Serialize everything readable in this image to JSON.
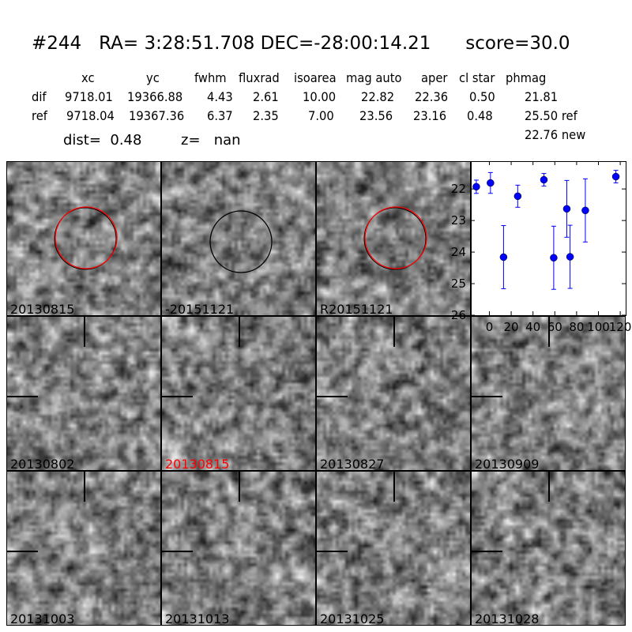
{
  "title": "#244   RA= 3:28:51.708 DEC=-28:00:14.21      score=30.0",
  "table": {
    "headers": [
      "xc",
      "yc",
      "fwhm",
      "fluxrad",
      "isoarea",
      "mag auto",
      "aper",
      "cl star",
      "phmag"
    ],
    "rows": [
      {
        "label": "dif",
        "values": [
          "9718.01",
          "19366.88",
          "4.43",
          "2.61",
          "10.00",
          "22.82",
          "22.36",
          "0.50",
          "21.81"
        ]
      },
      {
        "label": "ref",
        "values": [
          "9718.04",
          "19367.36",
          "6.37",
          "2.35",
          "7.00",
          "23.56",
          "23.16",
          "0.48",
          "25.50 ref"
        ]
      }
    ],
    "extra_phmag": "22.76 new",
    "dist": "dist=  0.48",
    "z": "z=   nan"
  },
  "stamps": [
    {
      "label": "20130815",
      "label_color": "#000000",
      "circle": "red"
    },
    {
      "label": "-20151121",
      "label_color": "#000000",
      "circle": "black"
    },
    {
      "label": "R20151121",
      "label_color": "#000000",
      "circle": "red"
    },
    {
      "label": "20130802",
      "label_color": "#000000"
    },
    {
      "label": "20130815",
      "label_color": "#ff0000"
    },
    {
      "label": "20130827",
      "label_color": "#000000"
    },
    {
      "label": "20130909",
      "label_color": "#000000"
    },
    {
      "label": "20131003",
      "label_color": "#000000"
    },
    {
      "label": "20131013",
      "label_color": "#000000"
    },
    {
      "label": "20131025",
      "label_color": "#000000"
    },
    {
      "label": "20131028",
      "label_color": "#000000"
    }
  ],
  "chart_data": {
    "type": "scatter",
    "xlim": [
      -17,
      125
    ],
    "ylim": [
      26,
      21.12
    ],
    "y_inverted": true,
    "xticks": [
      0,
      20,
      40,
      60,
      80,
      100,
      120
    ],
    "yticks": [
      22,
      23,
      24,
      25,
      26
    ],
    "color": "#0000ff",
    "points": [
      {
        "x": -12,
        "y": 21.93,
        "err": 0.21
      },
      {
        "x": 1,
        "y": 21.81,
        "err": 0.33
      },
      {
        "x": 13,
        "y": 24.16,
        "err": 1.0
      },
      {
        "x": 26,
        "y": 22.23,
        "err": 0.35
      },
      {
        "x": 50,
        "y": 21.71,
        "err": 0.2
      },
      {
        "x": 59,
        "y": 24.18,
        "err": 1.0
      },
      {
        "x": 71,
        "y": 22.63,
        "err": 0.9
      },
      {
        "x": 74,
        "y": 24.15,
        "err": 1.0
      },
      {
        "x": 88,
        "y": 22.68,
        "err": 1.0
      },
      {
        "x": 116,
        "y": 21.61,
        "err": 0.2
      }
    ]
  }
}
